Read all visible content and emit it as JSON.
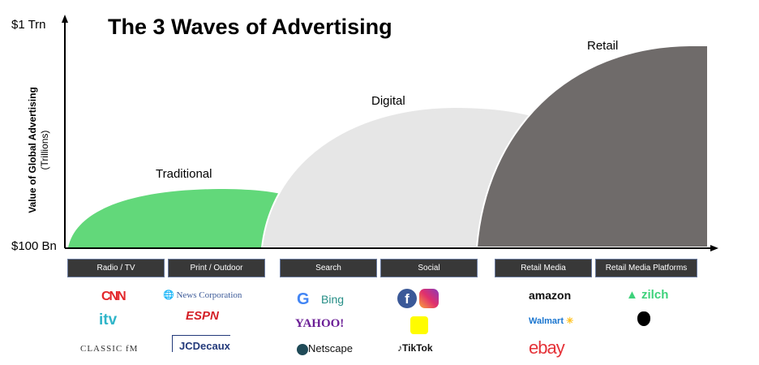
{
  "title": "The 3 Waves of Advertising",
  "y_axis": {
    "top_label": "$1 Trn",
    "bottom_label": "$100 Bn",
    "label": "Value of Global Advertising",
    "unit": "(Trillions)"
  },
  "waves": [
    {
      "label": "Traditional",
      "color": "#62d87a"
    },
    {
      "label": "Digital",
      "color": "#e6e6e6"
    },
    {
      "label": "Retail",
      "color": "#6f6b6a"
    }
  ],
  "categories": [
    "Radio / TV",
    "Print / Outdoor",
    "Search",
    "Social",
    "Retail Media",
    "Retail Media Platforms"
  ],
  "logos": {
    "radio_tv": [
      "CNN",
      "itv",
      "CLASSIC fM"
    ],
    "print_outdoor": [
      "News Corporation",
      "ESPN",
      "JCDecaux"
    ],
    "search": [
      "Bing",
      "YAHOO!",
      "Netscape"
    ],
    "social": [
      "TikTok"
    ],
    "retail_media": [
      "amazon",
      "Walmart",
      "ebay"
    ],
    "retail_media_platforms": [
      "zilch"
    ]
  }
}
